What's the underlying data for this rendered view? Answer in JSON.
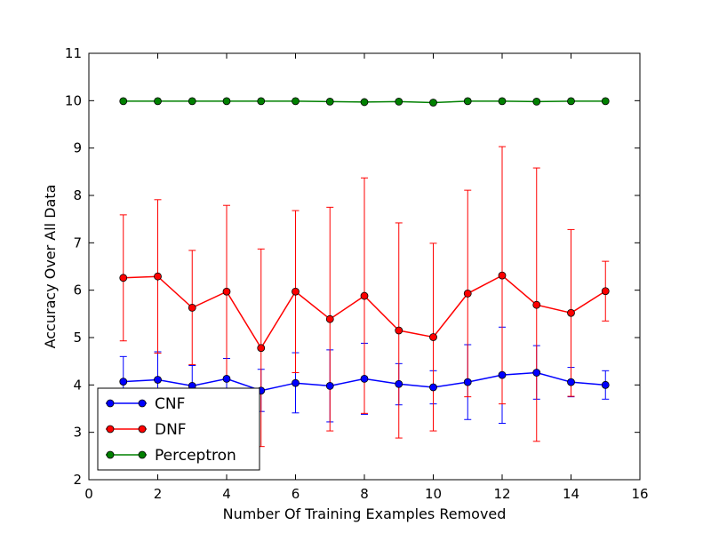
{
  "chart_data": {
    "type": "line",
    "title": "",
    "xlabel": "Number Of Training Examples Removed",
    "ylabel": "Accuracy Over All Data",
    "xlim": [
      0,
      16
    ],
    "ylim": [
      2,
      11
    ],
    "xticks": [
      0,
      2,
      4,
      6,
      8,
      10,
      12,
      14,
      16
    ],
    "yticks": [
      2,
      3,
      4,
      5,
      6,
      7,
      8,
      9,
      10,
      11
    ],
    "xtick_labels": [
      "0",
      "2",
      "4",
      "6",
      "8",
      "10",
      "12",
      "14",
      "16"
    ],
    "ytick_labels": [
      "2",
      "3",
      "4",
      "5",
      "6",
      "7",
      "8",
      "9",
      "10",
      "11"
    ],
    "grid": false,
    "legend_position": "bottom-left",
    "x": [
      1,
      2,
      3,
      4,
      5,
      6,
      7,
      8,
      9,
      10,
      11,
      12,
      13,
      14,
      15
    ],
    "series": [
      {
        "name": "CNF",
        "color": "#0000ff",
        "values": [
          4.07,
          4.11,
          3.98,
          4.13,
          3.88,
          4.04,
          3.98,
          4.13,
          4.02,
          3.95,
          4.06,
          4.21,
          4.26,
          4.06,
          4.0
        ],
        "err_low": [
          3.55,
          3.52,
          3.56,
          3.7,
          3.44,
          3.41,
          3.22,
          3.38,
          3.58,
          3.6,
          3.27,
          3.19,
          3.7,
          3.75,
          3.7
        ],
        "err_high": [
          4.6,
          4.7,
          4.41,
          4.56,
          4.33,
          4.68,
          4.74,
          4.88,
          4.45,
          4.3,
          4.85,
          5.22,
          4.83,
          4.37,
          4.3
        ]
      },
      {
        "name": "DNF",
        "color": "#ff0000",
        "values": [
          6.26,
          6.29,
          5.63,
          5.97,
          4.78,
          5.97,
          5.39,
          5.88,
          5.15,
          5.01,
          5.93,
          6.31,
          5.69,
          5.52,
          5.98
        ],
        "err_low": [
          4.93,
          4.67,
          4.43,
          4.15,
          2.7,
          4.26,
          3.03,
          3.4,
          2.88,
          3.03,
          3.75,
          3.6,
          2.81,
          3.76,
          5.35
        ],
        "err_high": [
          7.59,
          7.91,
          6.84,
          7.79,
          6.87,
          7.68,
          7.75,
          8.37,
          7.42,
          6.99,
          8.11,
          9.03,
          8.58,
          7.28,
          6.61
        ]
      },
      {
        "name": "Perceptron",
        "color": "#008000",
        "values": [
          9.99,
          9.99,
          9.99,
          9.99,
          9.99,
          9.99,
          9.98,
          9.97,
          9.98,
          9.96,
          9.99,
          9.99,
          9.98,
          9.99,
          9.99
        ]
      }
    ]
  }
}
